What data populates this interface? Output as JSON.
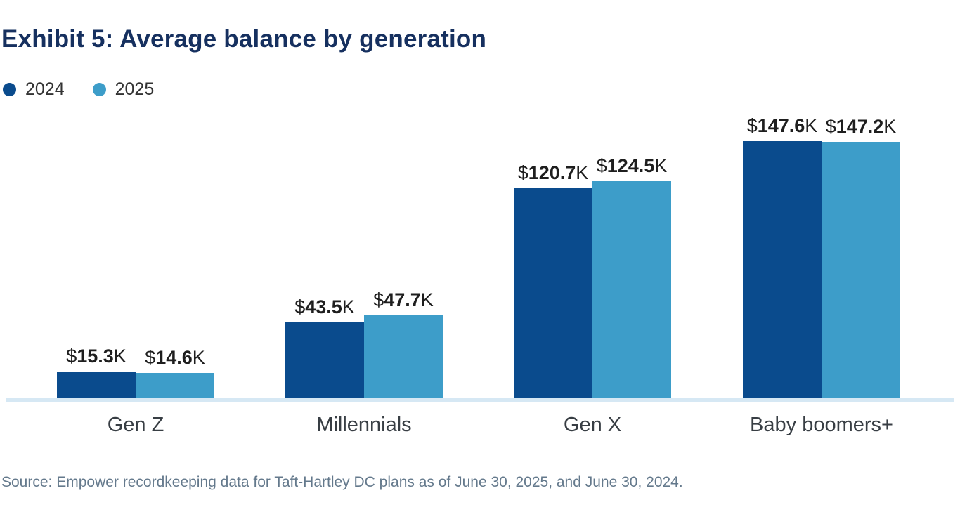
{
  "title": "Exhibit 5: Average balance by generation",
  "legend": [
    {
      "label": "2024",
      "color": "#0A4B8D"
    },
    {
      "label": "2025",
      "color": "#3D9DC9"
    }
  ],
  "source": "Source: Empower recordkeeping data for Taft-Hartley DC plans as of June 30, 2025, and June 30, 2024.",
  "colors": {
    "title": "#16305F",
    "baseline": "#D6E8F4",
    "value_label": "#1E1E1E",
    "category_label": "#383E44",
    "source_text": "#64798C",
    "background": "#FFFFFF"
  },
  "chart_data": {
    "type": "bar",
    "title": "Exhibit 5: Average balance by generation",
    "categories": [
      "Gen Z",
      "Millennials",
      "Gen X",
      "Baby boomers+"
    ],
    "series": [
      {
        "name": "2024",
        "color": "#0A4B8D",
        "values": [
          15.3,
          43.5,
          120.7,
          147.6
        ]
      },
      {
        "name": "2025",
        "color": "#3D9DC9",
        "values": [
          14.6,
          47.7,
          124.5,
          147.2
        ]
      }
    ],
    "value_label_format": {
      "prefix": "$",
      "suffix": "K",
      "decimals": 1
    },
    "unit": "thousands of dollars",
    "xlabel": "",
    "ylabel": "",
    "ylim": [
      0,
      160
    ],
    "grid": false,
    "axis_line": "bottom-only",
    "legend_position": "top-left"
  }
}
